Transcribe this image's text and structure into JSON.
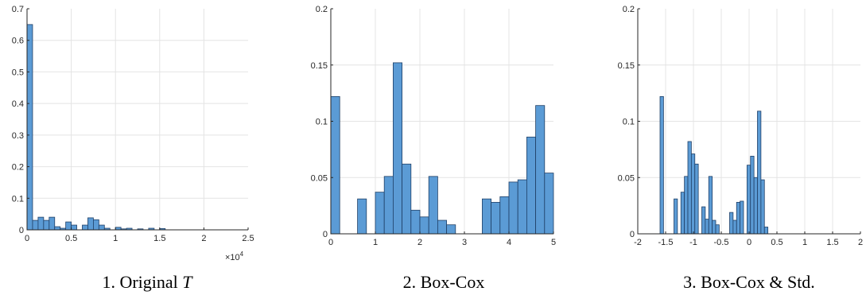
{
  "colors": {
    "bar": "#5b9bd5",
    "bar_edge": "#1f3f66",
    "grid": "#e4e4e4",
    "axis": "#262626"
  },
  "chart_data": [
    {
      "type": "bar",
      "caption_prefix": "1. Original ",
      "caption_symbol": "T",
      "xlim": [
        0,
        2.5
      ],
      "ylim": [
        0,
        0.7
      ],
      "x_exponent_label": "×10",
      "x_exponent_power": "4",
      "xticks": [
        0,
        0.5,
        1,
        1.5,
        2,
        2.5
      ],
      "xtick_labels": [
        "0",
        "0.5",
        "1",
        "1.5",
        "2",
        "2.5"
      ],
      "yticks": [
        0,
        0.1,
        0.2,
        0.3,
        0.4,
        0.5,
        0.6,
        0.7
      ],
      "ytick_labels": [
        "0",
        "0.1",
        "0.2",
        "0.3",
        "0.4",
        "0.5",
        "0.6",
        "0.7"
      ],
      "grid": true,
      "bin_start": 0,
      "bin_width": 0.0625,
      "values": [
        0.65,
        0.03,
        0.04,
        0.03,
        0.04,
        0.01,
        0.005,
        0.025,
        0.015,
        0.0,
        0.015,
        0.038,
        0.032,
        0.015,
        0.005,
        0.0,
        0.008,
        0.003,
        0.005,
        0.0,
        0.003,
        0.0,
        0.005,
        0.0,
        0.004,
        0.0,
        0.0,
        0.0,
        0.0,
        0.0,
        0.0,
        0.0,
        0.0,
        0.0,
        0.0,
        0.0
      ]
    },
    {
      "type": "bar",
      "caption": "2. Box-Cox",
      "xlim": [
        0,
        5
      ],
      "ylim": [
        0,
        0.2
      ],
      "xticks": [
        0,
        1,
        2,
        3,
        4,
        5
      ],
      "xtick_labels": [
        "0",
        "1",
        "2",
        "3",
        "4",
        "5"
      ],
      "yticks": [
        0,
        0.05,
        0.1,
        0.15,
        0.2
      ],
      "ytick_labels": [
        "0",
        "0.05",
        "0.1",
        "0.15",
        "0.2"
      ],
      "grid": true,
      "bin_start": 0,
      "bin_width": 0.2,
      "values": [
        0.122,
        0.0,
        0.0,
        0.031,
        0.0,
        0.037,
        0.051,
        0.152,
        0.062,
        0.021,
        0.015,
        0.051,
        0.012,
        0.008,
        0.0,
        0.0,
        0.0,
        0.031,
        0.028,
        0.033,
        0.046,
        0.048,
        0.086,
        0.114,
        0.054
      ]
    },
    {
      "type": "bar",
      "caption": "3. Box-Cox & Std.",
      "xlim": [
        -2,
        2
      ],
      "ylim": [
        0,
        0.2
      ],
      "xticks": [
        -2,
        -1.5,
        -1,
        -0.5,
        0,
        0.5,
        1,
        1.5,
        2
      ],
      "xtick_labels": [
        "-2",
        "-1.5",
        "-1",
        "-0.5",
        "0",
        "0.5",
        "1",
        "1.5",
        "2"
      ],
      "yticks": [
        0,
        0.05,
        0.1,
        0.15,
        0.2
      ],
      "ytick_labels": [
        "0",
        "0.05",
        "0.1",
        "0.15",
        "0.2"
      ],
      "grid": true,
      "bin_start": -1.6,
      "bin_width": 0.0625,
      "values": [
        0.122,
        0.0,
        0.0,
        0.0,
        0.031,
        0.0,
        0.037,
        0.051,
        0.082,
        0.071,
        0.062,
        0.0,
        0.024,
        0.013,
        0.051,
        0.012,
        0.008,
        0.0,
        0.0,
        0.0,
        0.019,
        0.012,
        0.028,
        0.029,
        0.0,
        0.061,
        0.069,
        0.05,
        0.109,
        0.048,
        0.006
      ]
    }
  ]
}
